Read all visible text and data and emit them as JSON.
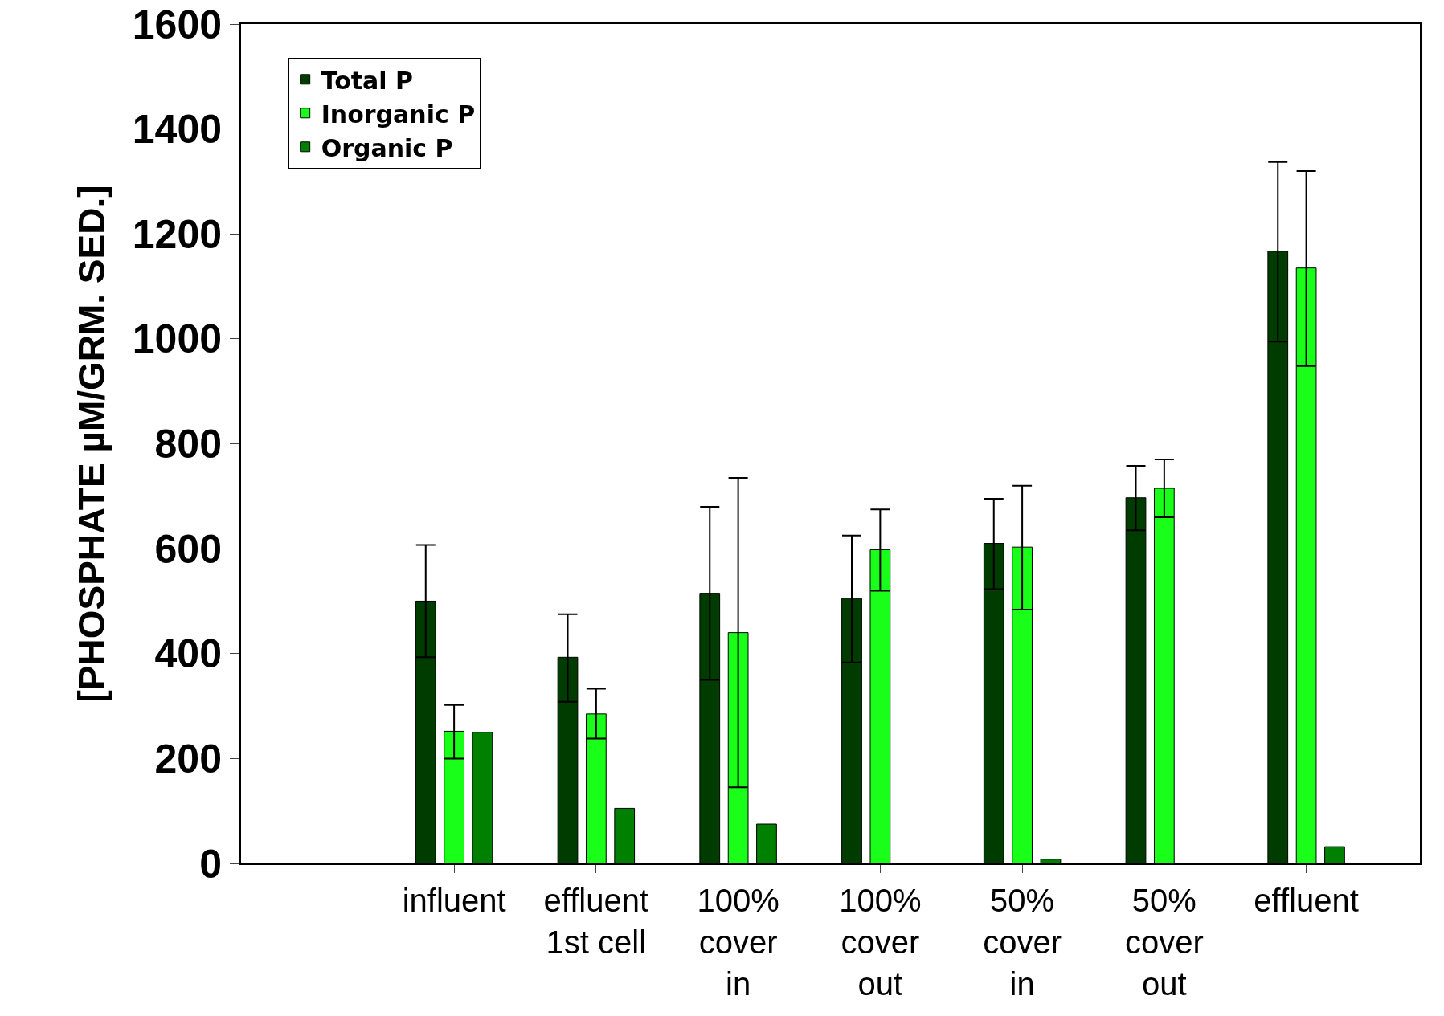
{
  "chart_data": {
    "type": "bar",
    "ylabel": "[PHOSPHATE µM/GRM. SED.]",
    "categories": [
      "influent",
      "effluent\n1st cell",
      "100%\ncover\nin",
      "100%\ncover\nout",
      "50%\ncover\nin",
      "50%\ncover\nout",
      "effluent"
    ],
    "series": [
      {
        "name": "Total P",
        "color": "#003b00",
        "values": [
          500,
          393,
          515,
          505,
          610,
          697,
          1167
        ],
        "errors": [
          [
            393,
            607
          ],
          [
            308,
            475
          ],
          [
            350,
            680
          ],
          [
            383,
            625
          ],
          [
            523,
            695
          ],
          [
            635,
            758
          ],
          [
            995,
            1337
          ]
        ]
      },
      {
        "name": "Inorganic P",
        "color": "#1aff1a",
        "values": [
          252,
          285,
          440,
          598,
          603,
          715,
          1135
        ],
        "errors": [
          [
            200,
            302
          ],
          [
            238,
            333
          ],
          [
            145,
            735
          ],
          [
            520,
            675
          ],
          [
            484,
            720
          ],
          [
            660,
            770
          ],
          [
            948,
            1320
          ]
        ]
      },
      {
        "name": "Organic P",
        "color": "#008000",
        "values": [
          250,
          105,
          75,
          null,
          8,
          null,
          32
        ]
      }
    ],
    "ylim": [
      0,
      1600
    ],
    "yticks": [
      0,
      200,
      400,
      600,
      800,
      1000,
      1200,
      1400,
      1600
    ],
    "grid": false,
    "legend": "top left"
  }
}
